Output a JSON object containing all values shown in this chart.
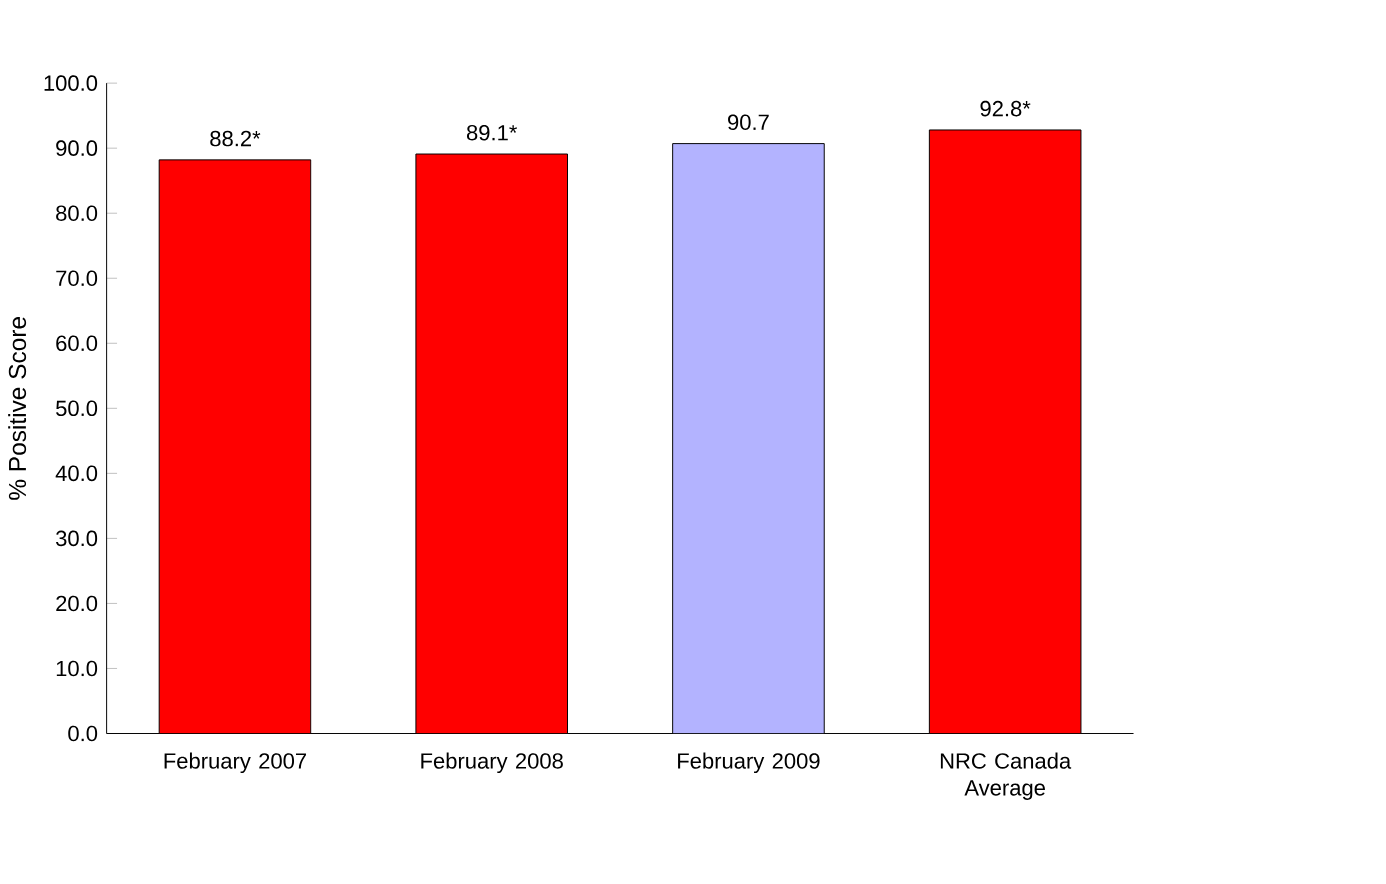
{
  "chart_data": {
    "type": "bar",
    "ylabel": "% Positive Score",
    "categories": [
      "February 2007",
      "February 2008",
      "February 2009",
      "NRC Canada Average"
    ],
    "values": [
      88.2,
      89.1,
      90.7,
      92.8
    ],
    "colors": [
      "#ff0000",
      "#ff0000",
      "#b3b3ff",
      "#ff0000"
    ],
    "value_labels": [
      "88.2*",
      "89.1*",
      "90.7",
      "92.8*"
    ],
    "ylim": [
      0,
      100
    ],
    "yticks": [
      {
        "value": 0,
        "label": "0.0"
      },
      {
        "value": 10,
        "label": "10.0"
      },
      {
        "value": 20,
        "label": "20.0"
      },
      {
        "value": 30,
        "label": "30.0"
      },
      {
        "value": 40,
        "label": "40.0"
      },
      {
        "value": 50,
        "label": "50.0"
      },
      {
        "value": 60,
        "label": "60.0"
      },
      {
        "value": 70,
        "label": "70.0"
      },
      {
        "value": 80,
        "label": "80.0"
      },
      {
        "value": 90,
        "label": "90.0"
      },
      {
        "value": 100,
        "label": "100.0"
      }
    ],
    "grid": false
  }
}
